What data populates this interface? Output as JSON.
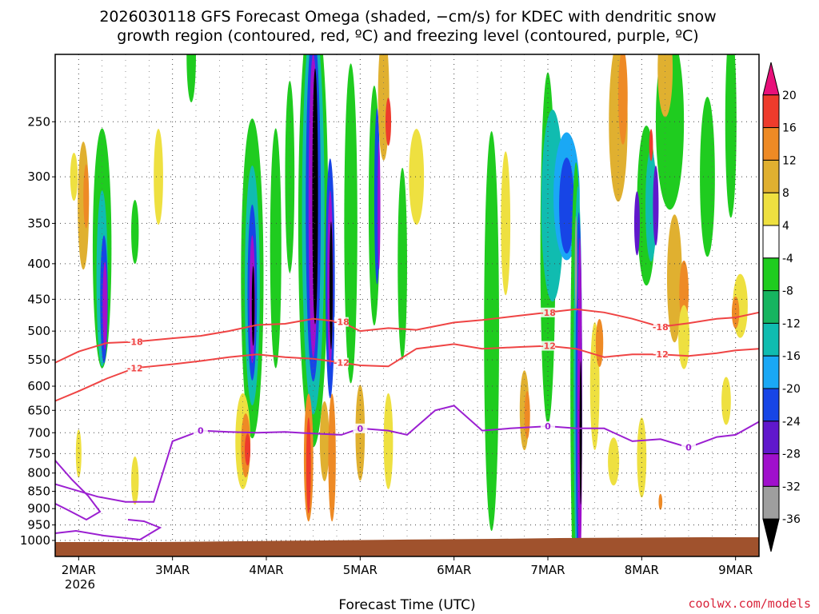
{
  "title": {
    "line1": "2026030118 GFS Forecast Omega (shaded, −cm/s) for KDEC with dendritic snow",
    "line2": "growth region (contoured, red, ºC) and freezing level (contoured, purple, ºC)"
  },
  "xlabel": "Forecast Time (UTC)",
  "credit": "coolwx.com/models",
  "chart_data": {
    "type": "heatmap",
    "title": "2026030118 GFS Forecast Omega (shaded, −cm/s) for KDEC with dendritic snow growth region (contoured, red, ºC) and freezing level (contoured, purple, ºC)",
    "xlabel": "Forecast Time (UTC)",
    "ylabel": "",
    "x_tick_labels": [
      "2MAR",
      "3MAR",
      "4MAR",
      "5MAR",
      "6MAR",
      "7MAR",
      "8MAR",
      "9MAR"
    ],
    "x_tick_sublabel": "2026",
    "y_tick_labels": [
      "250",
      "300",
      "350",
      "400",
      "450",
      "500",
      "550",
      "600",
      "650",
      "700",
      "750",
      "800",
      "850",
      "900",
      "950",
      "1000"
    ],
    "y_ticks": [
      250,
      300,
      350,
      400,
      450,
      500,
      550,
      600,
      650,
      700,
      750,
      800,
      850,
      900,
      950,
      1000
    ],
    "y_scale": "log",
    "ylim": [
      1000,
      200
    ],
    "x_range_days": [
      1.75,
      9.25
    ],
    "grid": true,
    "colorbar": {
      "labels": [
        "20",
        "16",
        "12",
        "8",
        "4",
        "-4",
        "-8",
        "-12",
        "-16",
        "-20",
        "-24",
        "-28",
        "-32",
        "-36"
      ],
      "colors": [
        "#e8107a",
        "#ee3b2c",
        "#ee8a25",
        "#e0b030",
        "#eee040",
        "#ffffff",
        "#1fcc1f",
        "#16b560",
        "#10bcb0",
        "#1aa8f5",
        "#1745e6",
        "#6018cc",
        "#a010cc",
        "#9e9e9e",
        "#000000"
      ]
    },
    "series": [
      {
        "name": "-18",
        "color": "#ef4444",
        "x": [
          1.75,
          2.0,
          2.3,
          2.6,
          3.0,
          3.3,
          3.6,
          3.9,
          4.2,
          4.5,
          4.8,
          5.0,
          5.3,
          5.6,
          6.0,
          6.3,
          6.7,
          7.0,
          7.3,
          7.6,
          7.9,
          8.2,
          8.5,
          8.8,
          9.0,
          9.25
        ],
        "y": [
          555,
          535,
          520,
          518,
          512,
          508,
          500,
          490,
          488,
          480,
          485,
          500,
          495,
          498,
          486,
          482,
          475,
          470,
          465,
          470,
          480,
          493,
          487,
          480,
          478,
          470
        ]
      },
      {
        "name": "-12",
        "color": "#ef4444",
        "x": [
          1.75,
          2.0,
          2.3,
          2.6,
          3.0,
          3.3,
          3.6,
          3.9,
          4.2,
          4.5,
          4.8,
          5.0,
          5.3,
          5.6,
          6.0,
          6.3,
          6.7,
          7.0,
          7.3,
          7.6,
          7.9,
          8.2,
          8.5,
          8.8,
          9.0,
          9.25
        ],
        "y": [
          630,
          610,
          585,
          565,
          558,
          552,
          545,
          540,
          545,
          548,
          555,
          560,
          562,
          530,
          522,
          530,
          527,
          525,
          530,
          545,
          540,
          540,
          543,
          538,
          533,
          530
        ]
      },
      {
        "name": "0",
        "color": "#9b1fd1",
        "x": [
          1.75,
          2.2,
          2.5,
          2.8,
          3.0,
          3.3,
          3.6,
          3.9,
          4.2,
          4.5,
          4.8,
          5.0,
          5.3,
          5.5,
          5.8,
          6.0,
          6.3,
          6.6,
          7.0,
          7.3,
          7.6,
          7.9,
          8.2,
          8.5,
          8.8,
          9.0,
          9.25
        ],
        "y": [
          830,
          865,
          880,
          880,
          720,
          695,
          698,
          700,
          698,
          702,
          705,
          690,
          695,
          705,
          650,
          640,
          695,
          690,
          685,
          690,
          690,
          720,
          715,
          735,
          710,
          705,
          675
        ]
      }
    ]
  }
}
